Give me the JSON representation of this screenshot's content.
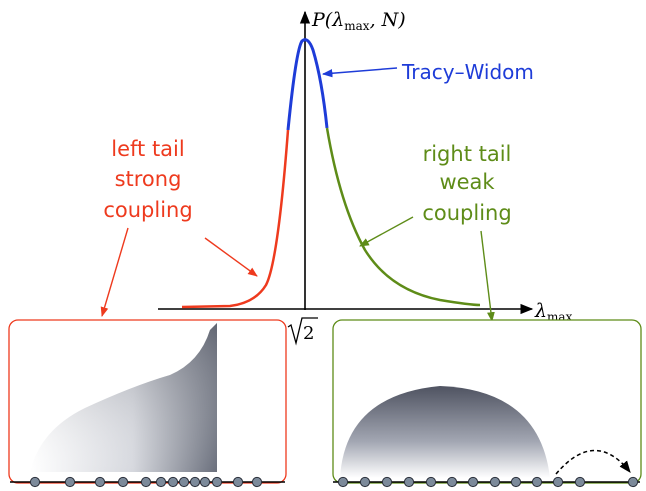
{
  "axes": {
    "y_label_main": "P(",
    "y_label_lambda": "λ",
    "y_label_sub": "max",
    "y_label_rest": ", N)",
    "x_label_lambda": "λ",
    "x_label_sub": "max",
    "x_tick_label": "2"
  },
  "annotations": {
    "tracy_widom": "Tracy–Widom",
    "left_tail": [
      "left tail",
      "strong",
      "coupling"
    ],
    "right_tail": [
      "right tail",
      "weak",
      "coupling"
    ]
  },
  "colors": {
    "left": "#ee3a1e",
    "center": "#1e3cd8",
    "right": "#5e8c18",
    "axis": "#000000",
    "bead": "#7c8a9a"
  },
  "insets": {
    "left_dot_count": 13,
    "right_dot_count": 13
  }
}
